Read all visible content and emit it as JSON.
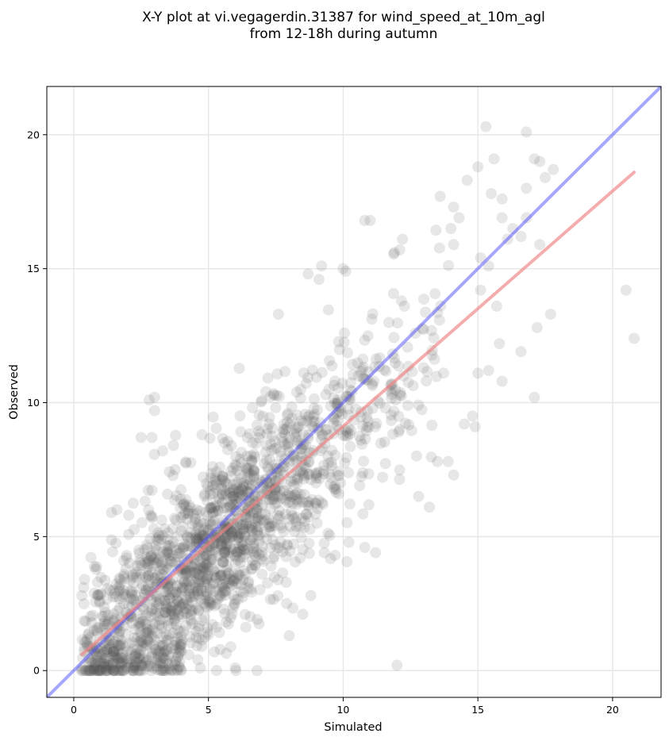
{
  "chart_data": {
    "type": "scatter",
    "title_lines": [
      "X-Y plot at vi.vegagerdin.31387 for wind_speed_at_10m_agl",
      "from 12-18h during autumn"
    ],
    "xlabel": "Simulated",
    "ylabel": "Observed",
    "xlim": [
      -1.0,
      21.8
    ],
    "ylim": [
      -1.0,
      21.8
    ],
    "xticks": [
      0,
      5,
      10,
      15,
      20
    ],
    "yticks": [
      0,
      5,
      10,
      15,
      20
    ],
    "grid": true,
    "point_color": "#555555",
    "point_opacity": 0.14,
    "identity_line": {
      "name": "1:1",
      "color": "#4d4dff",
      "x": [
        -1.0,
        21.8
      ],
      "y": [
        -1.0,
        21.8
      ]
    },
    "regression_line": {
      "color": "#f08080",
      "x": [
        0.3,
        20.8
      ],
      "y": [
        0.6,
        18.6
      ]
    },
    "outlier_points": [
      [
        15.3,
        20.3
      ],
      [
        16.8,
        20.1
      ],
      [
        15.0,
        18.8
      ],
      [
        15.6,
        19.1
      ],
      [
        17.1,
        19.1
      ],
      [
        17.3,
        19.0
      ],
      [
        17.8,
        18.7
      ],
      [
        14.6,
        18.3
      ],
      [
        17.5,
        18.4
      ],
      [
        13.6,
        17.7
      ],
      [
        15.5,
        17.8
      ],
      [
        15.9,
        17.6
      ],
      [
        16.8,
        18.0
      ],
      [
        14.1,
        17.3
      ],
      [
        10.8,
        16.8
      ],
      [
        11.0,
        16.8
      ],
      [
        14.3,
        16.9
      ],
      [
        15.9,
        16.9
      ],
      [
        16.8,
        16.9
      ],
      [
        16.3,
        16.5
      ],
      [
        14.0,
        16.5
      ],
      [
        16.6,
        16.2
      ],
      [
        12.2,
        16.1
      ],
      [
        14.1,
        15.9
      ],
      [
        17.3,
        15.9
      ],
      [
        11.9,
        15.6
      ],
      [
        12.1,
        15.7
      ],
      [
        15.1,
        15.4
      ],
      [
        16.1,
        16.1
      ],
      [
        15.4,
        15.1
      ],
      [
        20.5,
        14.2
      ],
      [
        20.8,
        12.4
      ],
      [
        15.7,
        13.6
      ],
      [
        17.7,
        13.3
      ],
      [
        15.1,
        14.2
      ],
      [
        15.8,
        12.2
      ],
      [
        16.6,
        11.9
      ],
      [
        17.2,
        12.8
      ],
      [
        15.4,
        11.2
      ],
      [
        15.0,
        11.1
      ],
      [
        15.9,
        10.8
      ],
      [
        17.1,
        10.2
      ],
      [
        14.8,
        9.5
      ],
      [
        14.9,
        9.1
      ],
      [
        14.5,
        9.2
      ],
      [
        14.1,
        7.3
      ],
      [
        13.9,
        7.8
      ],
      [
        13.5,
        7.8
      ],
      [
        13.2,
        6.1
      ],
      [
        12.8,
        6.5
      ],
      [
        12.0,
        0.2
      ],
      [
        11.2,
        4.4
      ],
      [
        10.8,
        4.6
      ],
      [
        9.7,
        4.3
      ],
      [
        9.3,
        4.4
      ],
      [
        8.0,
        1.3
      ],
      [
        7.9,
        2.5
      ],
      [
        8.5,
        2.1
      ],
      [
        8.8,
        2.8
      ],
      [
        7.6,
        13.3
      ],
      [
        9.2,
        15.1
      ],
      [
        8.7,
        14.8
      ],
      [
        10.0,
        15.0
      ],
      [
        10.1,
        14.9
      ],
      [
        9.1,
        14.6
      ],
      [
        2.5,
        8.7
      ],
      [
        2.8,
        10.1
      ],
      [
        3.0,
        10.2
      ],
      [
        3.0,
        9.7
      ],
      [
        2.9,
        8.7
      ],
      [
        3.3,
        8.2
      ],
      [
        3.7,
        8.4
      ],
      [
        1.6,
        6.0
      ],
      [
        1.4,
        5.9
      ],
      [
        0.4,
        3.4
      ],
      [
        0.3,
        2.8
      ],
      [
        0.6,
        0.9
      ],
      [
        1.2,
        0.0
      ],
      [
        2.0,
        0.1
      ],
      [
        4.0,
        0.0
      ],
      [
        5.3,
        0.0
      ],
      [
        6.0,
        0.1
      ],
      [
        6.8,
        0.0
      ],
      [
        4.7,
        0.1
      ],
      [
        3.3,
        0.0
      ]
    ]
  }
}
